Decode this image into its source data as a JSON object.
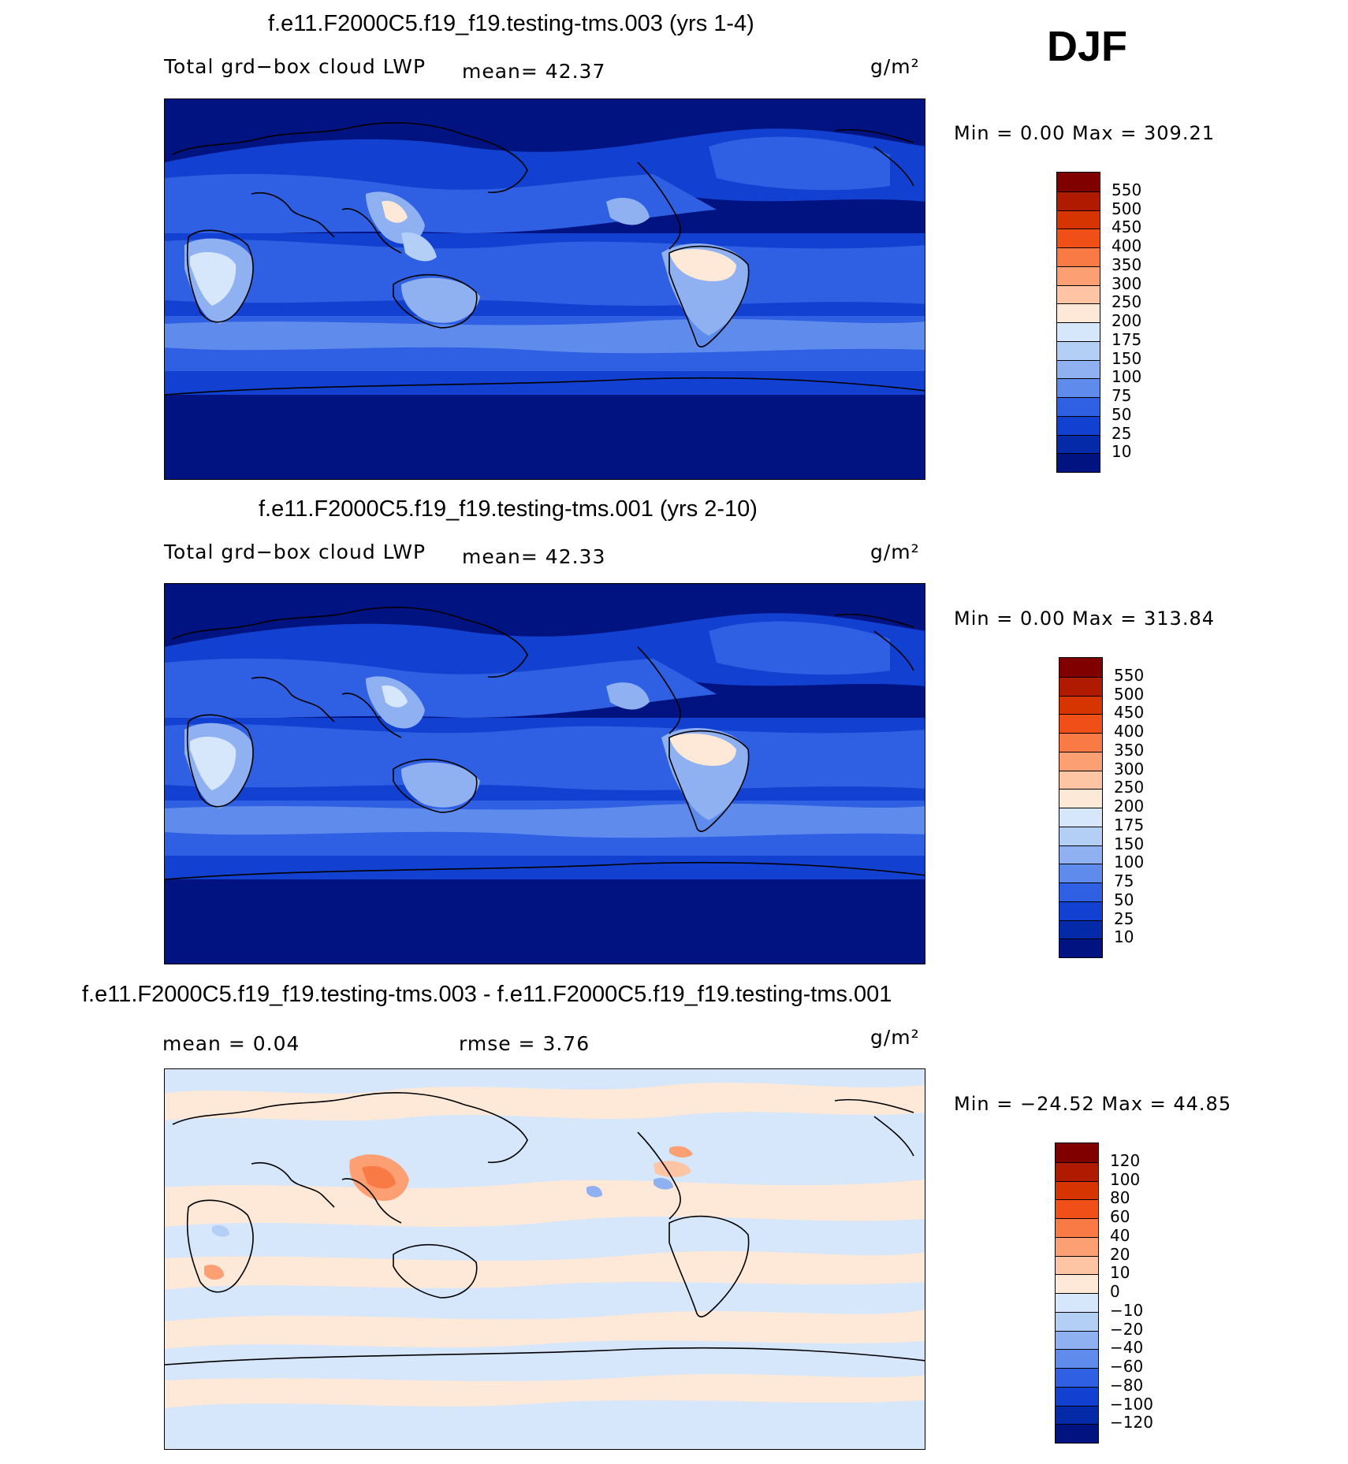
{
  "season": "DJF",
  "units": "g/m²",
  "panels": [
    {
      "title": "f.e11.F2000C5.f19_f19.testing-tms.003 (yrs 1-4)",
      "variable": "Total grd−box cloud LWP",
      "stat1": "mean=   42.37",
      "minmax": "Min =    0.00  Max  =  309.21",
      "levels": [
        "550",
        "500",
        "450",
        "400",
        "350",
        "300",
        "250",
        "200",
        "175",
        "150",
        "100",
        "75",
        "50",
        "25",
        "10"
      ],
      "colors": [
        "#800000",
        "#b01a00",
        "#d63400",
        "#f04f17",
        "#f97a44",
        "#fca074",
        "#fdc5a4",
        "#fee8d7",
        "#d6e6fb",
        "#b3cff6",
        "#8fb0f1",
        "#5f8cec",
        "#2f60e3",
        "#1240d0",
        "#042aaa",
        "#001380"
      ]
    },
    {
      "title": "f.e11.F2000C5.f19_f19.testing-tms.001 (yrs 2-10)",
      "variable": "Total grd−box cloud LWP",
      "stat1": "mean=   42.33",
      "minmax": "Min =    0.00  Max  =  313.84",
      "levels": [
        "550",
        "500",
        "450",
        "400",
        "350",
        "300",
        "250",
        "200",
        "175",
        "150",
        "100",
        "75",
        "50",
        "25",
        "10"
      ],
      "colors": [
        "#800000",
        "#b01a00",
        "#d63400",
        "#f04f17",
        "#f97a44",
        "#fca074",
        "#fdc5a4",
        "#fee8d7",
        "#d6e6fb",
        "#b3cff6",
        "#8fb0f1",
        "#5f8cec",
        "#2f60e3",
        "#1240d0",
        "#042aaa",
        "#001380"
      ]
    },
    {
      "title": "f.e11.F2000C5.f19_f19.testing-tms.003 - f.e11.F2000C5.f19_f19.testing-tms.001",
      "stat1": "mean =    0.04",
      "stat2": "rmse =    3.76",
      "minmax": "Min = −24.52  Max  =   44.85",
      "levels": [
        "120",
        "100",
        "80",
        "60",
        "40",
        "20",
        "10",
        "0",
        "−10",
        "−20",
        "−40",
        "−60",
        "−80",
        "−100",
        "−120"
      ],
      "colors": [
        "#800000",
        "#b01a00",
        "#d63400",
        "#f04f17",
        "#f97a44",
        "#fca074",
        "#fdc5a4",
        "#fee8d7",
        "#d6e6fb",
        "#b3cff6",
        "#8fb0f1",
        "#5f8cec",
        "#2f60e3",
        "#1240d0",
        "#042aaa",
        "#001380"
      ]
    }
  ]
}
